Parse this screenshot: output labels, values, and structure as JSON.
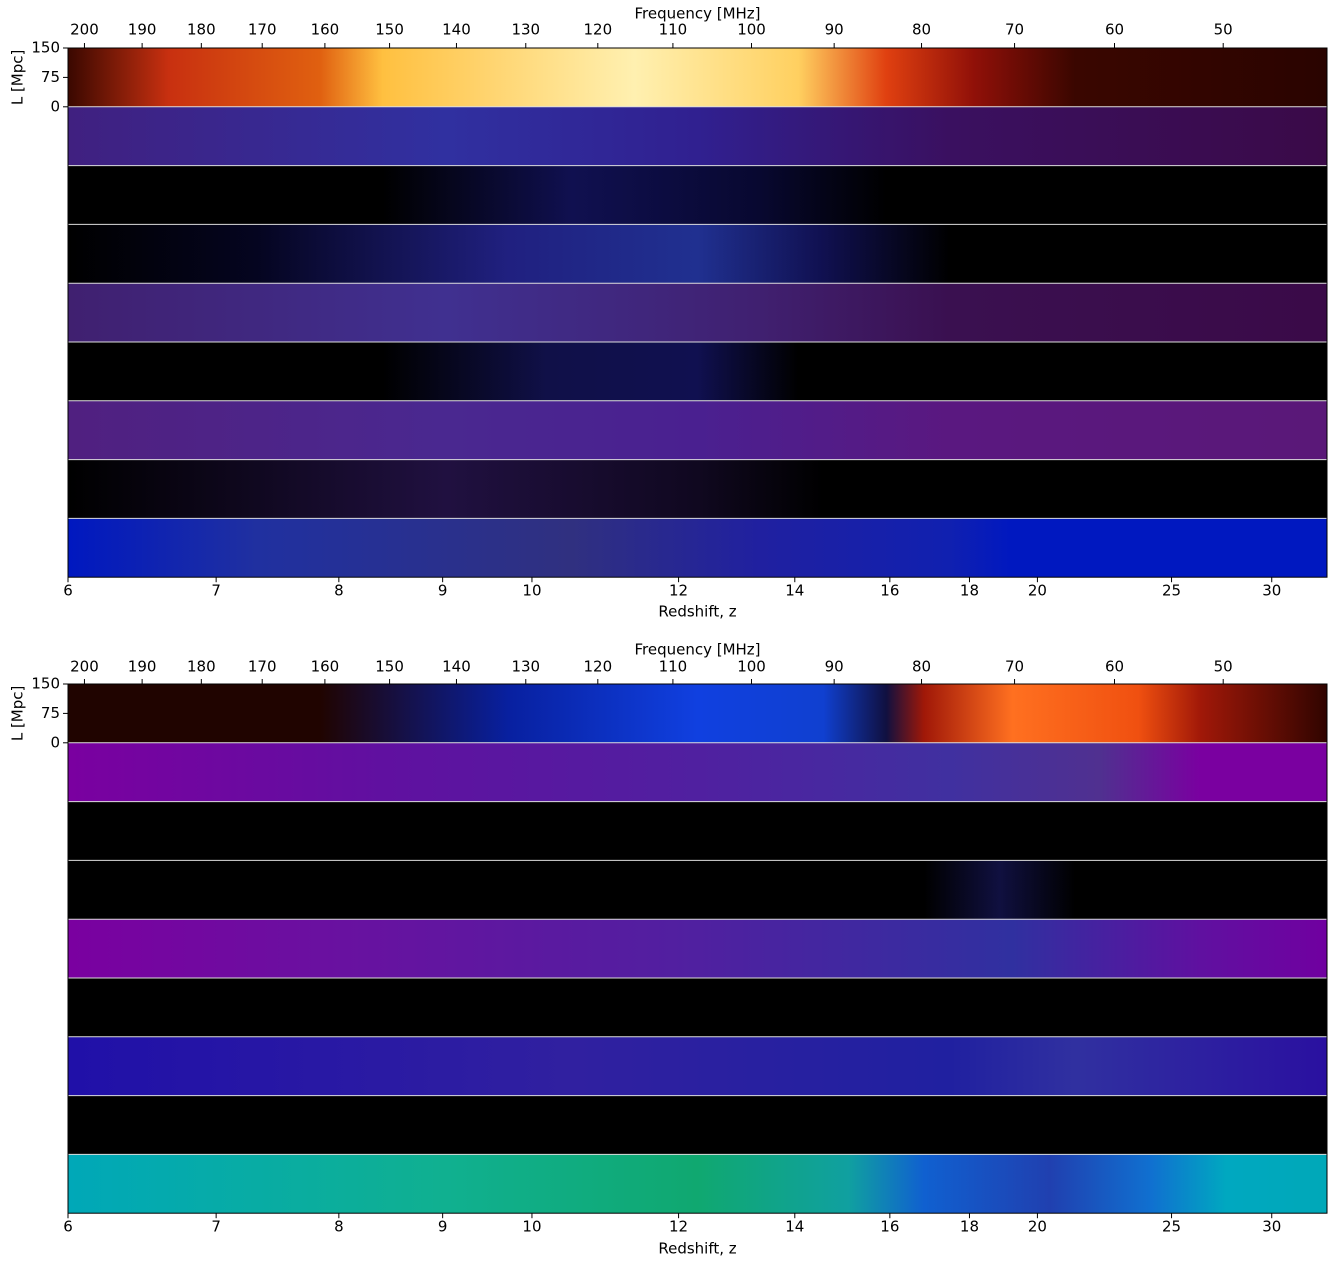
{
  "chart_data": [
    {
      "type": "image-strips",
      "x2label": "Frequency [MHz]",
      "xlabel": "Redshift, z",
      "ylabel": "L [Mpc]",
      "xlim": [
        6,
        33.4
      ],
      "xscale": "inverse-sqrt-1p",
      "xticks": [
        6,
        7,
        8,
        9,
        10,
        12,
        14,
        16,
        18,
        20,
        25,
        30
      ],
      "x2lim": [
        202.9,
        41.3
      ],
      "x2scale": "sqrt",
      "x2ticks": [
        200,
        190,
        180,
        170,
        160,
        150,
        140,
        130,
        120,
        110,
        100,
        90,
        80,
        70,
        60,
        50
      ],
      "ylim": [
        0,
        150
      ],
      "yticks": [
        0,
        75,
        150
      ]
    },
    {
      "type": "image-strips",
      "x2label": "Frequency [MHz]",
      "xlabel": "Redshift, z",
      "ylabel": "L [Mpc]",
      "xlim": [
        6,
        33.4
      ],
      "xscale": "inverse-sqrt-1p",
      "xticks": [
        6,
        7,
        8,
        9,
        10,
        12,
        14,
        16,
        18,
        20,
        25,
        30
      ],
      "x2lim": [
        202.9,
        41.3
      ],
      "x2scale": "sqrt",
      "x2ticks": [
        200,
        190,
        180,
        170,
        160,
        150,
        140,
        130,
        120,
        110,
        100,
        90,
        80,
        70,
        60,
        50
      ],
      "ylim": [
        0,
        150
      ],
      "yticks": [
        0,
        75,
        150
      ]
    }
  ]
}
